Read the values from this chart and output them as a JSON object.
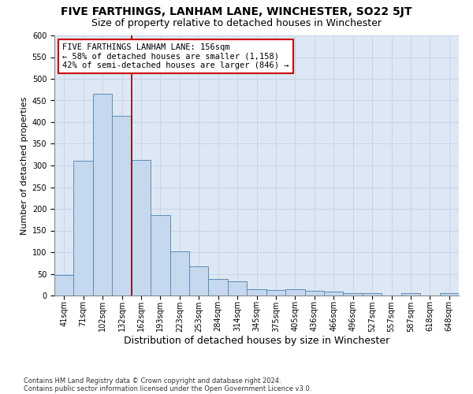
{
  "title": "FIVE FARTHINGS, LANHAM LANE, WINCHESTER, SO22 5JT",
  "subtitle": "Size of property relative to detached houses in Winchester",
  "xlabel": "Distribution of detached houses by size in Winchester",
  "ylabel": "Number of detached properties",
  "categories": [
    "41sqm",
    "71sqm",
    "102sqm",
    "132sqm",
    "162sqm",
    "193sqm",
    "223sqm",
    "253sqm",
    "284sqm",
    "314sqm",
    "345sqm",
    "375sqm",
    "405sqm",
    "436sqm",
    "466sqm",
    "496sqm",
    "527sqm",
    "557sqm",
    "587sqm",
    "618sqm",
    "648sqm"
  ],
  "values": [
    47,
    311,
    466,
    415,
    312,
    186,
    102,
    68,
    39,
    33,
    14,
    12,
    14,
    11,
    9,
    5,
    5,
    0,
    6,
    0,
    5
  ],
  "bar_color": "#c5d8ee",
  "bar_edge_color": "#5b8db8",
  "vline_x": 3.5,
  "vline_color": "#8b0000",
  "annotation_line1": "FIVE FARTHINGS LANHAM LANE: 156sqm",
  "annotation_line2": "← 58% of detached houses are smaller (1,158)",
  "annotation_line3": "42% of semi-detached houses are larger (846) →",
  "annotation_box_color": "#cc0000",
  "annotation_box_fill": "#ffffff",
  "ylim": [
    0,
    600
  ],
  "yticks": [
    0,
    50,
    100,
    150,
    200,
    250,
    300,
    350,
    400,
    450,
    500,
    550,
    600
  ],
  "grid_color": "#c8d4e8",
  "bg_color": "#dde8f4",
  "footnote1": "Contains HM Land Registry data © Crown copyright and database right 2024.",
  "footnote2": "Contains public sector information licensed under the Open Government Licence v3.0.",
  "title_fontsize": 10,
  "subtitle_fontsize": 9,
  "xlabel_fontsize": 9,
  "ylabel_fontsize": 8,
  "tick_fontsize": 7,
  "annotation_fontsize": 7.5,
  "footnote_fontsize": 6
}
